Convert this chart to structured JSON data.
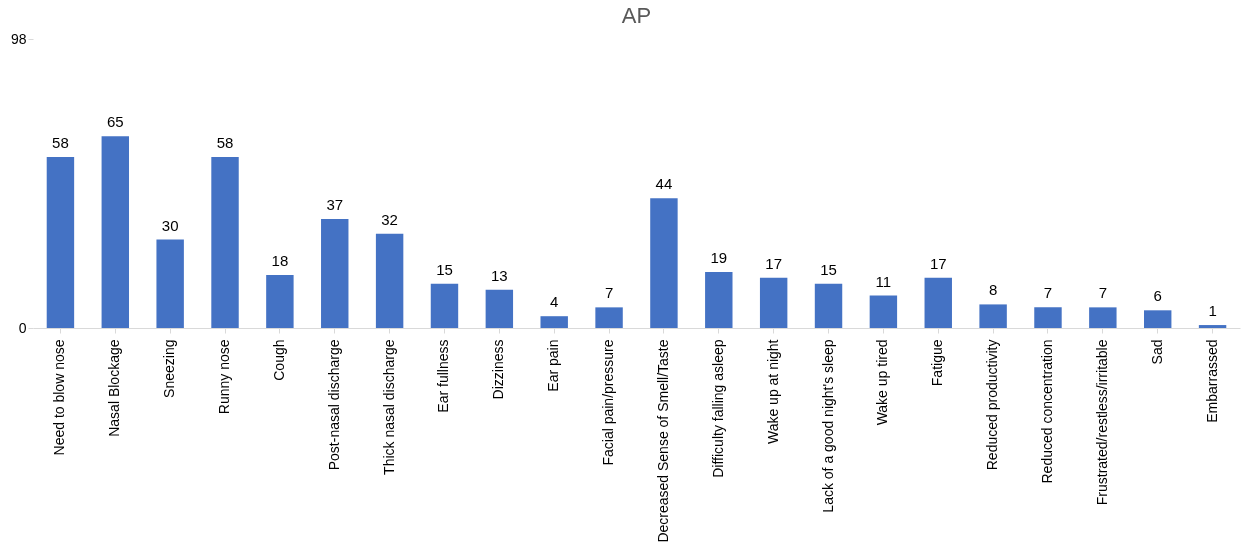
{
  "chart_data": {
    "type": "bar",
    "title": "AP",
    "categories": [
      "Need to blow nose",
      "Nasal Blockage",
      "Sneezing",
      "Runny nose",
      "Cough",
      "Post-nasal discharge",
      "Thick nasal discharge",
      "Ear fullness",
      "Dizziness",
      "Ear pain",
      "Facial pain/pressure",
      "Decreased Sense of Smell/Taste",
      "Difficulty falling asleep",
      "Wake up at night",
      "Lack of a good night's sleep",
      "Wake up tired",
      "Fatigue",
      "Reduced productivity",
      "Reduced concentration",
      "Frustrated/restless/irritable",
      "Sad",
      "Embarrassed"
    ],
    "values": [
      58,
      65,
      30,
      58,
      18,
      37,
      32,
      15,
      13,
      4,
      7,
      44,
      19,
      17,
      15,
      11,
      17,
      8,
      7,
      7,
      6,
      1
    ],
    "color": "#4472c4",
    "ylim": [
      0,
      98
    ],
    "yticks": [
      0,
      98
    ],
    "grid": false,
    "data_labels": true
  }
}
